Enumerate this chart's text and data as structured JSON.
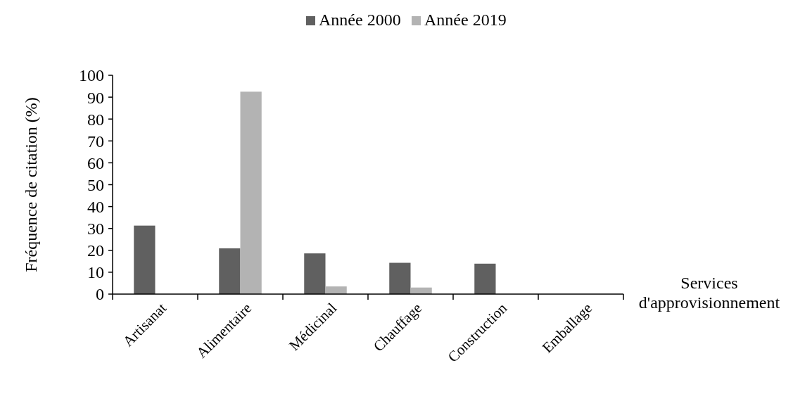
{
  "chart_data": {
    "type": "bar",
    "xlabel": "Services d'approvisionnement",
    "ylabel": "Fréquence de citation (%)",
    "categories": [
      "Artisanat",
      "Alimentaire",
      "Médicinal",
      "Chauffage",
      "Construction",
      "Emballage"
    ],
    "series": [
      {
        "name": "Année 2000",
        "color": "#606060",
        "values": [
          31.3,
          20.9,
          18.6,
          14.3,
          13.9,
          0
        ]
      },
      {
        "name": "Année 2019",
        "color": "#b3b3b3",
        "values": [
          0,
          92.5,
          3.5,
          3.0,
          0,
          0
        ]
      }
    ],
    "ylim": [
      0,
      100
    ],
    "yticks": [
      0,
      10,
      20,
      30,
      40,
      50,
      60,
      70,
      80,
      90,
      100
    ],
    "legend": "top",
    "grid": false
  }
}
